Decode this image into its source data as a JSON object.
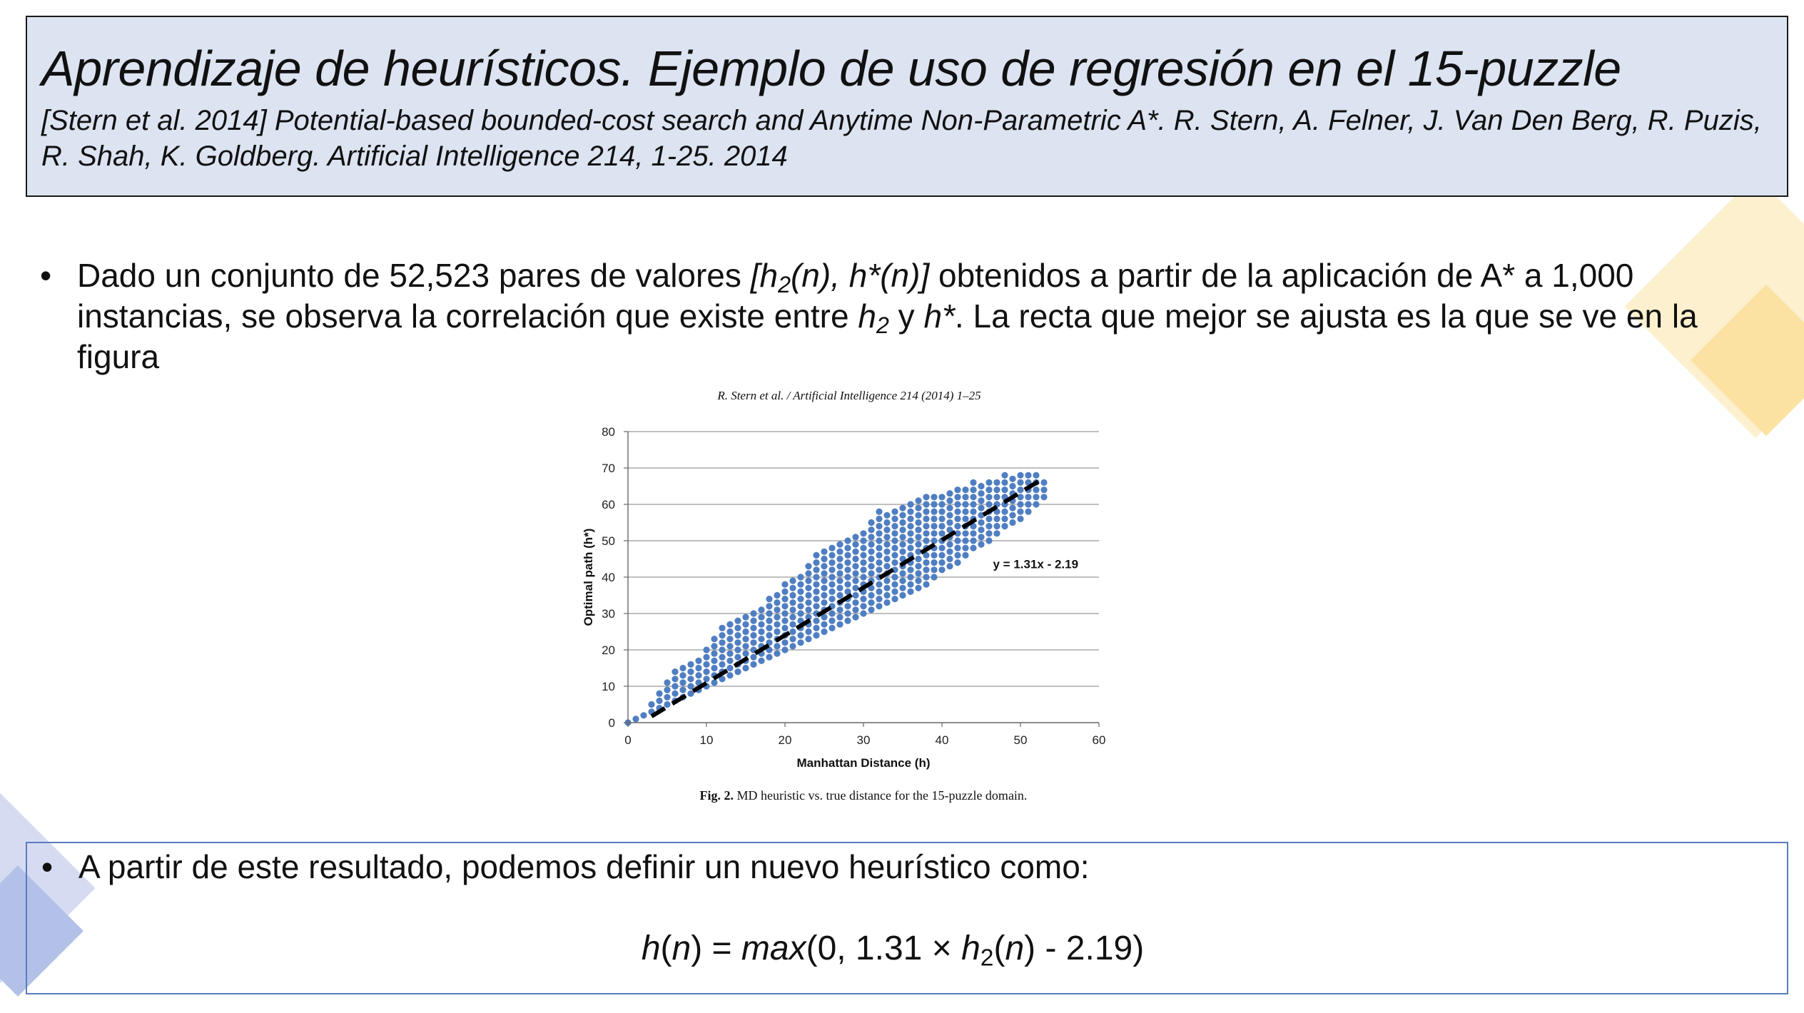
{
  "title": "Aprendizaje de heurísticos. Ejemplo de uso de regresión en el 15-puzzle",
  "reference": "[Stern et al. 2014] Potential-based bounded-cost search and Anytime Non-Parametric A*. R. Stern, A. Felner, J. Van Den Berg, R. Puzis, R. Shah, K. Goldberg. Artificial Intelligence 214, 1-25. 2014",
  "bullet1": {
    "p1": "Dado un conjunto de 52,523 pares de valores ",
    "p2_h": "[h",
    "p2_sub": "2",
    "p2_rest": "(n), h*(n)]",
    "p3": " obtenidos a partir de la aplicación de A* a 1,000 instancias, se observa la correlación que existe entre ",
    "p4_h": "h",
    "p4_sub": "2",
    "p5": " y ",
    "p6": "h*",
    "p7": ". La recta que mejor se ajusta es la que se ve en la figura"
  },
  "figure": {
    "header": "R. Stern et al. / Artificial Intelligence 214 (2014) 1–25",
    "caption_label": "Fig. 2.",
    "caption_text": " MD heuristic vs. true distance for the 15-puzzle domain."
  },
  "chart_data": {
    "type": "scatter",
    "xlabel": "Manhattan Distance (h)",
    "ylabel": "Optimal path (h*)",
    "xlim": [
      0,
      60
    ],
    "ylim": [
      0,
      80
    ],
    "xticks": [
      0,
      10,
      20,
      30,
      40,
      50,
      60
    ],
    "yticks": [
      0,
      10,
      20,
      30,
      40,
      50,
      60,
      70,
      80
    ],
    "grid": "horizontal",
    "point_color": "#4f7ec2",
    "trendline": {
      "slope": 1.31,
      "intercept": -2.19,
      "x_range": [
        3,
        53
      ],
      "label": "y = 1.31x - 2.19",
      "style": "dashed"
    },
    "band": [
      {
        "x": 0,
        "ymin": 0,
        "ymax": 0
      },
      {
        "x": 2,
        "ymin": 2,
        "ymax": 2
      },
      {
        "x": 4,
        "ymin": 4,
        "ymax": 8
      },
      {
        "x": 6,
        "ymin": 6,
        "ymax": 14
      },
      {
        "x": 8,
        "ymin": 8,
        "ymax": 16
      },
      {
        "x": 10,
        "ymin": 10,
        "ymax": 20
      },
      {
        "x": 12,
        "ymin": 12,
        "ymax": 26
      },
      {
        "x": 14,
        "ymin": 14,
        "ymax": 28
      },
      {
        "x": 16,
        "ymin": 16,
        "ymax": 30
      },
      {
        "x": 18,
        "ymin": 18,
        "ymax": 34
      },
      {
        "x": 20,
        "ymin": 20,
        "ymax": 38
      },
      {
        "x": 22,
        "ymin": 22,
        "ymax": 40
      },
      {
        "x": 24,
        "ymin": 24,
        "ymax": 46
      },
      {
        "x": 26,
        "ymin": 26,
        "ymax": 48
      },
      {
        "x": 28,
        "ymin": 28,
        "ymax": 50
      },
      {
        "x": 30,
        "ymin": 30,
        "ymax": 52
      },
      {
        "x": 32,
        "ymin": 32,
        "ymax": 58
      },
      {
        "x": 34,
        "ymin": 34,
        "ymax": 58
      },
      {
        "x": 36,
        "ymin": 36,
        "ymax": 60
      },
      {
        "x": 38,
        "ymin": 38,
        "ymax": 62
      },
      {
        "x": 40,
        "ymin": 42,
        "ymax": 62
      },
      {
        "x": 42,
        "ymin": 44,
        "ymax": 64
      },
      {
        "x": 44,
        "ymin": 48,
        "ymax": 66
      },
      {
        "x": 46,
        "ymin": 50,
        "ymax": 66
      },
      {
        "x": 48,
        "ymin": 54,
        "ymax": 68
      },
      {
        "x": 50,
        "ymin": 56,
        "ymax": 68
      },
      {
        "x": 52,
        "ymin": 60,
        "ymax": 68
      },
      {
        "x": 53,
        "ymin": 62,
        "ymax": 66
      }
    ]
  },
  "bullet2": "A partir de este resultado, podemos definir un nuevo heurístico como:",
  "formula": {
    "h": "h",
    "n1": "n",
    "max": "max",
    "mid": "(0, 1.31 × ",
    "h2": "h",
    "sub": "2",
    "n2": "n",
    "tail": ") - 2.19)"
  },
  "bullet_glyph": "•",
  "colors": {
    "title_bg": "#dce3f1",
    "deco_yellow": "#fbe6b0",
    "deco_blue": "#c5cfec",
    "box_border": "#5b7bc0"
  }
}
